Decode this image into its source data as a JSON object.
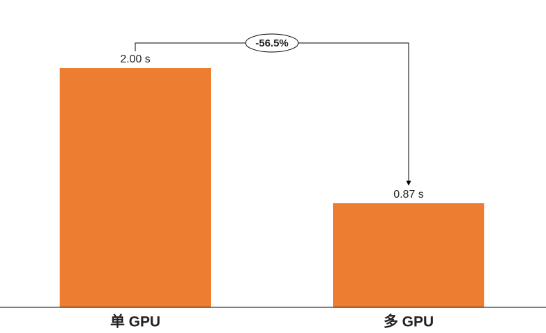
{
  "chart_data": {
    "type": "bar",
    "categories": [
      "单 GPU",
      "多 GPU"
    ],
    "values": [
      2.0,
      0.87
    ],
    "value_labels": [
      "2.00 s",
      "0.87 s"
    ],
    "color": "#ed7d31",
    "ylim": [
      0,
      2.0
    ],
    "annotation": "-56.5%"
  }
}
